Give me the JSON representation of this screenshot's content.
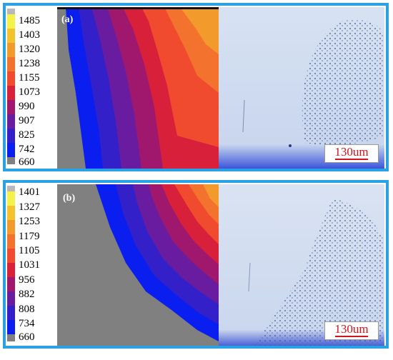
{
  "panels": [
    {
      "label": "(a)",
      "scale_ticks": [
        "1485",
        "1403",
        "1320",
        "1238",
        "1155",
        "1073",
        "990",
        "907",
        "825",
        "742",
        "660"
      ],
      "scale_bar": "130um"
    },
    {
      "label": "(b)",
      "scale_ticks": [
        "1401",
        "1327",
        "1253",
        "1179",
        "1105",
        "1031",
        "956",
        "882",
        "808",
        "734",
        "660"
      ],
      "scale_bar": "130um"
    }
  ],
  "colors": {
    "frame": "#2aa1e3",
    "scale": [
      "#b9b9b9",
      "#f2f24a",
      "#f3c22d",
      "#f39a2d",
      "#f3722d",
      "#f04a2f",
      "#d9203a",
      "#a0186e",
      "#6a1ca0",
      "#3420c8",
      "#0a1ef0",
      "#808080"
    ],
    "scale_bar_text": "#d4141a"
  }
}
